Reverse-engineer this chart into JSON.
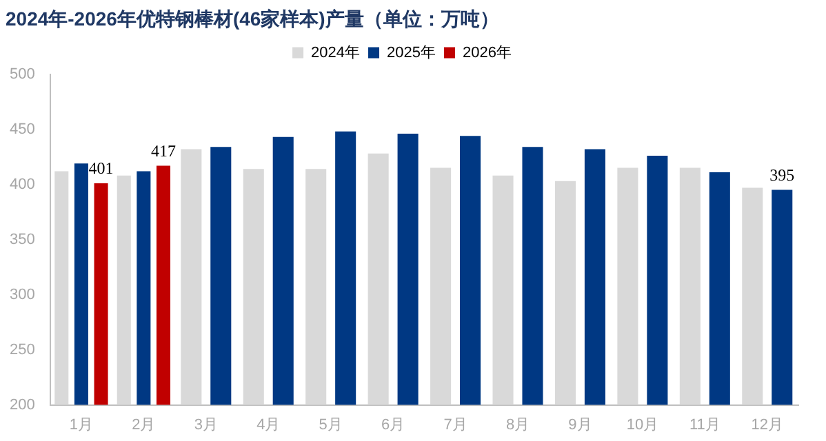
{
  "chart_data": {
    "type": "bar",
    "title": "2024年-2026年优特钢棒材(46家样本)产量（单位：万吨）",
    "categories": [
      "1月",
      "2月",
      "3月",
      "4月",
      "5月",
      "6月",
      "7月",
      "8月",
      "9月",
      "10月",
      "11月",
      "12月"
    ],
    "series": [
      {
        "name": "2024年",
        "color": "#d9d9d9",
        "values": [
          412,
          408,
          432,
          414,
          414,
          428,
          415,
          408,
          403,
          415,
          415,
          397
        ]
      },
      {
        "name": "2025年",
        "color": "#003883",
        "values": [
          419,
          412,
          434,
          443,
          448,
          446,
          444,
          434,
          432,
          426,
          411,
          395
        ],
        "value_labels": [
          null,
          null,
          null,
          null,
          null,
          null,
          null,
          null,
          null,
          null,
          null,
          "395"
        ]
      },
      {
        "name": "2026年",
        "color": "#c00000",
        "values": [
          401,
          417,
          null,
          null,
          null,
          null,
          null,
          null,
          null,
          null,
          null,
          null
        ],
        "value_labels": [
          "401",
          "417",
          null,
          null,
          null,
          null,
          null,
          null,
          null,
          null,
          null,
          null
        ]
      }
    ],
    "ylim": [
      200,
      500
    ],
    "yticks": [
      200,
      250,
      300,
      350,
      400,
      450,
      500
    ],
    "grid": false,
    "legend": "top"
  }
}
